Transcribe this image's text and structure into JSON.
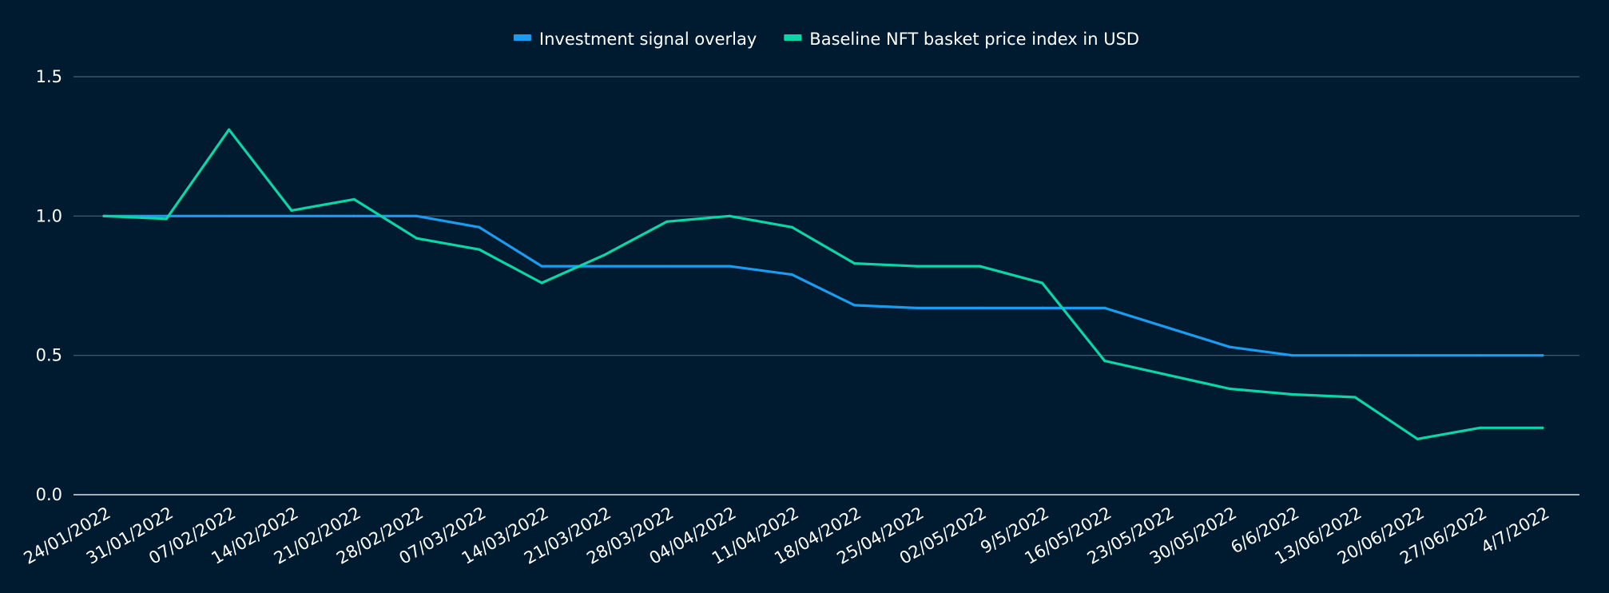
{
  "chart_data": {
    "type": "line",
    "title": "",
    "xlabel": "",
    "ylabel": "",
    "categories": [
      "24/01/2022",
      "31/01/2022",
      "07/02/2022",
      "14/02/2022",
      "21/02/2022",
      "28/02/2022",
      "07/03/2022",
      "14/03/2022",
      "21/03/2022",
      "28/03/2022",
      "04/04/2022",
      "11/04/2022",
      "18/04/2022",
      "25/04/2022",
      "02/05/2022",
      "9/5/2022",
      "16/05/2022",
      "23/05/2022",
      "30/05/2022",
      "6/6/2022",
      "13/06/2022",
      "20/06/2022",
      "27/06/2022",
      "4/7/2022"
    ],
    "ylim": [
      0,
      1.5
    ],
    "yticks": [
      "0.0",
      "0.5",
      "1.0",
      "1.5"
    ],
    "grid": true,
    "legend_position": "top-center",
    "series": [
      {
        "name": "Investment signal overlay",
        "color": "#1a9cf0",
        "values": [
          1.0,
          1.0,
          1.0,
          1.0,
          1.0,
          1.0,
          0.96,
          0.82,
          0.82,
          0.82,
          0.82,
          0.79,
          0.68,
          0.67,
          0.67,
          0.67,
          0.67,
          0.6,
          0.53,
          0.5,
          0.5,
          0.5,
          0.5,
          0.5
        ]
      },
      {
        "name": "Baseline NFT basket price index in USD",
        "color": "#0ad6a8",
        "values": [
          1.0,
          0.99,
          1.31,
          1.02,
          1.06,
          0.92,
          0.88,
          0.76,
          0.86,
          0.98,
          1.0,
          0.96,
          0.83,
          0.82,
          0.82,
          0.76,
          0.48,
          0.43,
          0.38,
          0.36,
          0.35,
          0.2,
          0.24,
          0.24
        ]
      }
    ]
  },
  "colors": {
    "background": "#001b30",
    "grid": "#4a6276",
    "axis": "#d8e0e6",
    "text": "#ffffff"
  }
}
